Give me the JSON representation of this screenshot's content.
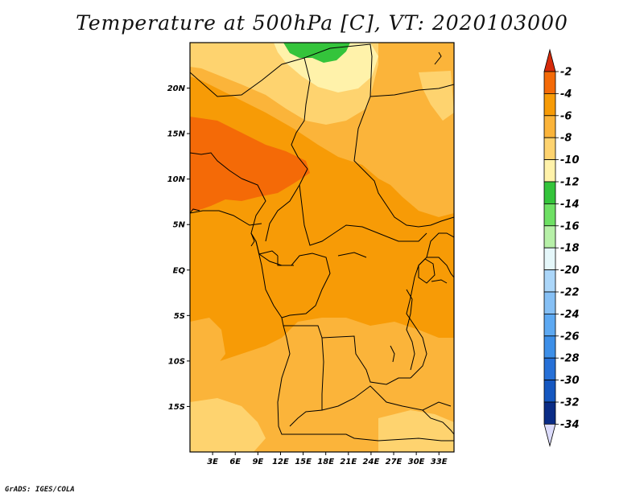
{
  "title": "Temperature at 500hPa [C], VT: 2020103000",
  "credit": "GrADS: IGES/COLA",
  "map": {
    "lat_labels": [
      "20N",
      "15N",
      "10N",
      "5N",
      "EQ",
      "5S",
      "10S",
      "15S"
    ],
    "lon_labels": [
      "3E",
      "6E",
      "9E",
      "12E",
      "15E",
      "18E",
      "21E",
      "24E",
      "27E",
      "30E",
      "33E"
    ],
    "lat_range": [
      -20,
      25
    ],
    "lon_range": [
      0,
      35
    ]
  },
  "colorbar": {
    "labels": [
      "-2",
      "-4",
      "-6",
      "-8",
      "-10",
      "-12",
      "-14",
      "-16",
      "-18",
      "-20",
      "-22",
      "-24",
      "-26",
      "-28",
      "-30",
      "-32",
      "-34"
    ],
    "colors": [
      "#d62a0a",
      "#f46a07",
      "#f79b06",
      "#fbb43a",
      "#fed36f",
      "#fff2aa",
      "#34c43b",
      "#6ee064",
      "#b7f0a8",
      "#e5f7fa",
      "#abd6f9",
      "#86c0f5",
      "#5da9f2",
      "#3d8fe8",
      "#2670d7",
      "#1557c0",
      "#0a2c86",
      "#dcdcfc"
    ]
  }
}
